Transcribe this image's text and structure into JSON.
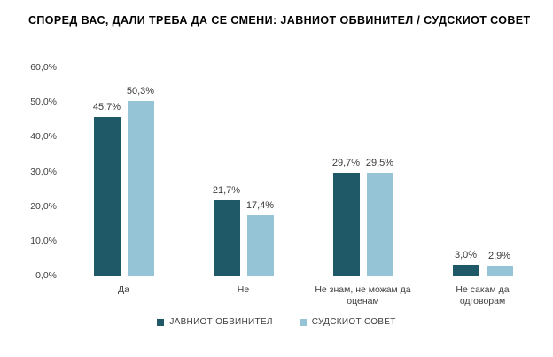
{
  "colors": {
    "series1": "#1f5866",
    "series2": "#95c4d6",
    "axis_line": "#d9d9d9",
    "title_text": "#000000",
    "label_text": "#3f3f3f"
  },
  "chart_data": {
    "type": "bar",
    "title": "СПОРЕД ВАС, ДАЛИ ТРЕБА ДА СЕ СМЕНИ: ЈАВНИОТ ОБВИНИТЕЛ / СУДСКИОТ СОВЕТ",
    "categories": [
      "Да",
      "Не",
      "Не знам, не можам да\nоценам",
      "Не сакам да\nодговорам"
    ],
    "series": [
      {
        "name": "ЈАВНИОТ ОБВИНИТЕЛ",
        "color": "#1f5866",
        "values": [
          45.7,
          21.7,
          29.7,
          3.0
        ],
        "labels": [
          "45,7%",
          "21,7%",
          "29,7%",
          "3,0%"
        ]
      },
      {
        "name": "СУДСКИОТ СОВЕТ",
        "color": "#95c4d6",
        "values": [
          50.3,
          17.4,
          29.5,
          2.9
        ],
        "labels": [
          "50,3%",
          "17,4%",
          "29,5%",
          "2,9%"
        ]
      }
    ],
    "y_axis": {
      "ticks": [
        "0,0%",
        "10,0%",
        "20,0%",
        "30,0%",
        "40,0%",
        "50,0%",
        "60,0%"
      ],
      "min": 0,
      "max": 60,
      "step": 10
    },
    "grid": false,
    "legend_position": "bottom",
    "xlabel": "",
    "ylabel": ""
  }
}
